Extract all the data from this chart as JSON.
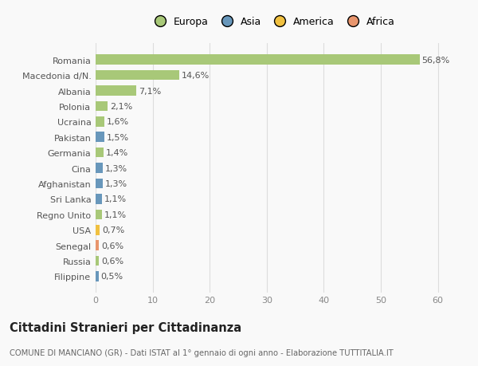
{
  "categories": [
    "Filippine",
    "Russia",
    "Senegal",
    "USA",
    "Regno Unito",
    "Sri Lanka",
    "Afghanistan",
    "Cina",
    "Germania",
    "Pakistan",
    "Ucraina",
    "Polonia",
    "Albania",
    "Macedonia d/N.",
    "Romania"
  ],
  "values": [
    0.5,
    0.6,
    0.6,
    0.7,
    1.1,
    1.1,
    1.3,
    1.3,
    1.4,
    1.5,
    1.6,
    2.1,
    7.1,
    14.6,
    56.8
  ],
  "labels": [
    "0,5%",
    "0,6%",
    "0,6%",
    "0,7%",
    "1,1%",
    "1,1%",
    "1,3%",
    "1,3%",
    "1,4%",
    "1,5%",
    "1,6%",
    "2,1%",
    "7,1%",
    "14,6%",
    "56,8%"
  ],
  "colors": [
    "#6897bb",
    "#a8c878",
    "#e8956d",
    "#f0c040",
    "#a8c878",
    "#6897bb",
    "#6897bb",
    "#6897bb",
    "#a8c878",
    "#6897bb",
    "#a8c878",
    "#a8c878",
    "#a8c878",
    "#a8c878",
    "#a8c878"
  ],
  "continent_colors": {
    "Europa": "#a8c878",
    "Asia": "#6897bb",
    "America": "#f0c040",
    "Africa": "#e8956d"
  },
  "title": "Cittadini Stranieri per Cittadinanza",
  "subtitle": "COMUNE DI MANCIANO (GR) - Dati ISTAT al 1° gennaio di ogni anno - Elaborazione TUTTITALIA.IT",
  "xlim": [
    0,
    62
  ],
  "xticks": [
    0,
    10,
    20,
    30,
    40,
    50,
    60
  ],
  "background_color": "#f9f9f9",
  "bar_height": 0.65
}
